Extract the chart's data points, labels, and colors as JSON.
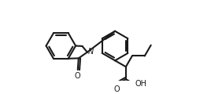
{
  "background": "#ffffff",
  "line_color": "#1a1a1a",
  "line_width": 1.5,
  "figsize": [
    2.82,
    1.2
  ],
  "dpi": 100,
  "labels": {
    "N": "N",
    "O_carbonyl": "O",
    "O_cooh": "O",
    "OH": "OH"
  },
  "font_size": 7.0
}
